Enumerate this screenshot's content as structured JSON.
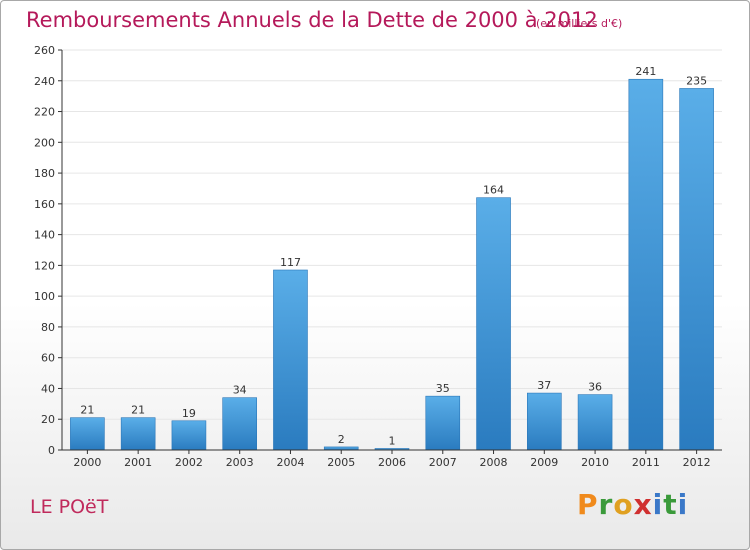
{
  "header": {
    "title": "Remboursements Annuels de la Dette de 2000 à 2012",
    "subtitle": "(en milliers d'€)"
  },
  "footer": {
    "location": "LE POëT",
    "logo_letters": [
      "P",
      "r",
      "o",
      "x",
      "i",
      "t",
      "i"
    ],
    "logo_colors": [
      "#f08a1c",
      "#3a9a3a",
      "#e0a020",
      "#d03030",
      "#3a78c8",
      "#3a9a3a",
      "#3a78c8"
    ]
  },
  "colors": {
    "bar": "#4a9edc",
    "bar_dark": "#2a7bbf",
    "grid": "#e6e6e6",
    "axis": "#333333",
    "title": "#b5195a"
  },
  "chart_data": {
    "type": "bar",
    "categories": [
      "2000",
      "2001",
      "2002",
      "2003",
      "2004",
      "2005",
      "2006",
      "2007",
      "2008",
      "2009",
      "2010",
      "2011",
      "2012"
    ],
    "values": [
      21,
      21,
      19,
      34,
      117,
      2,
      1,
      35,
      164,
      37,
      36,
      241,
      235
    ],
    "ylim": [
      0,
      260
    ],
    "yticks": [
      0,
      20,
      40,
      60,
      80,
      100,
      120,
      140,
      160,
      180,
      200,
      220,
      240,
      260
    ],
    "grid": true,
    "title": "Remboursements Annuels de la Dette de 2000 à 2012",
    "xlabel": "",
    "ylabel": ""
  }
}
